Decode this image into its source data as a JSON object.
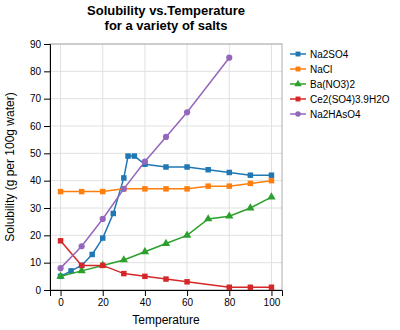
{
  "chart_data": {
    "type": "line",
    "title": "Solubility vs.Temperature\nfor a variety of salts",
    "x_label": "Temperature",
    "y_label": "Solubility (g per 100g water)",
    "xlim": [
      -5,
      105
    ],
    "ylim": [
      0,
      90
    ],
    "xticks": [
      0,
      20,
      40,
      60,
      80,
      100
    ],
    "yticks": [
      0,
      10,
      20,
      30,
      40,
      50,
      60,
      70,
      80,
      90
    ],
    "grid": true,
    "legend": "upper right",
    "series": [
      {
        "name": "Na2SO4",
        "marker": "square",
        "x": [
          0,
          5,
          10,
          15,
          20,
          25,
          30,
          32,
          35,
          40,
          50,
          60,
          70,
          80,
          90,
          100
        ],
        "values": [
          5,
          7,
          9,
          13,
          19,
          28,
          41,
          49,
          49,
          46,
          45,
          45,
          44,
          43,
          42,
          42
        ]
      },
      {
        "name": "NaCl",
        "marker": "square",
        "x": [
          0,
          10,
          20,
          30,
          40,
          50,
          60,
          70,
          80,
          90,
          100
        ],
        "values": [
          36,
          36,
          36,
          37,
          37,
          37,
          37,
          38,
          38,
          39,
          40
        ]
      },
      {
        "name": "Ba(NO3)2",
        "marker": "triangle",
        "x": [
          0,
          10,
          20,
          30,
          40,
          50,
          60,
          70,
          80,
          90,
          100
        ],
        "values": [
          5,
          7,
          9,
          11,
          14,
          17,
          20,
          26,
          27,
          30,
          34
        ]
      },
      {
        "name": "Ce2(SO4)3.9H2O",
        "marker": "square",
        "x": [
          0,
          10,
          20,
          30,
          40,
          50,
          60,
          80,
          90,
          100
        ],
        "values": [
          18,
          9,
          9,
          6,
          5,
          4,
          3,
          1,
          1,
          1
        ]
      },
      {
        "name": "Na2HAsO4",
        "marker": "circle",
        "x": [
          0,
          10,
          20,
          30,
          40,
          50,
          60,
          80
        ],
        "values": [
          8,
          16,
          26,
          37,
          47,
          56,
          65,
          85
        ]
      }
    ]
  }
}
